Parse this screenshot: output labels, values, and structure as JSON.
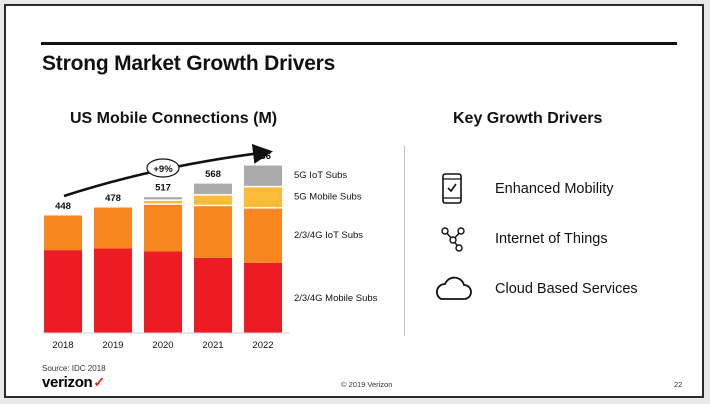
{
  "title": "Strong Market Growth Drivers",
  "chart_title": "US Mobile Connections (M)",
  "drivers_title": "Key Growth Drivers",
  "cagr_label": "+9%",
  "chart_data": {
    "type": "bar",
    "stacked": true,
    "categories": [
      "2018",
      "2019",
      "2020",
      "2021",
      "2022"
    ],
    "totals": [
      448,
      478,
      517,
      568,
      636
    ],
    "series": [
      {
        "name": "2/3/4G Mobile Subs",
        "color": "#ed1c24",
        "values": [
          312,
          318,
          307,
          283,
          264
        ]
      },
      {
        "name": "2/3/4G IoT Subs",
        "color": "#f7861f",
        "values": [
          136,
          160,
          181,
          200,
          210
        ]
      },
      {
        "name": "5G Mobile Subs",
        "color": "#fdbb3a",
        "values": [
          0,
          0,
          15,
          40,
          80
        ]
      },
      {
        "name": "5G IoT Subs",
        "color": "#aaaaaa",
        "values": [
          0,
          0,
          14,
          45,
          82
        ]
      }
    ],
    "ylim": [
      0,
      640
    ],
    "grid": false,
    "legend_placement": "right"
  },
  "drivers": [
    {
      "label": "Enhanced Mobility",
      "icon": "smartphone-check-icon"
    },
    {
      "label": "Internet of Things",
      "icon": "iot-network-icon"
    },
    {
      "label": "Cloud Based Services",
      "icon": "cloud-icon"
    }
  ],
  "footer": {
    "source": "Source: IDC 2018",
    "brand": "verizon",
    "brand_mark": "✓",
    "brand_color": "#e0241b",
    "copyright": "© 2019 Verizon",
    "page_number": "22"
  }
}
